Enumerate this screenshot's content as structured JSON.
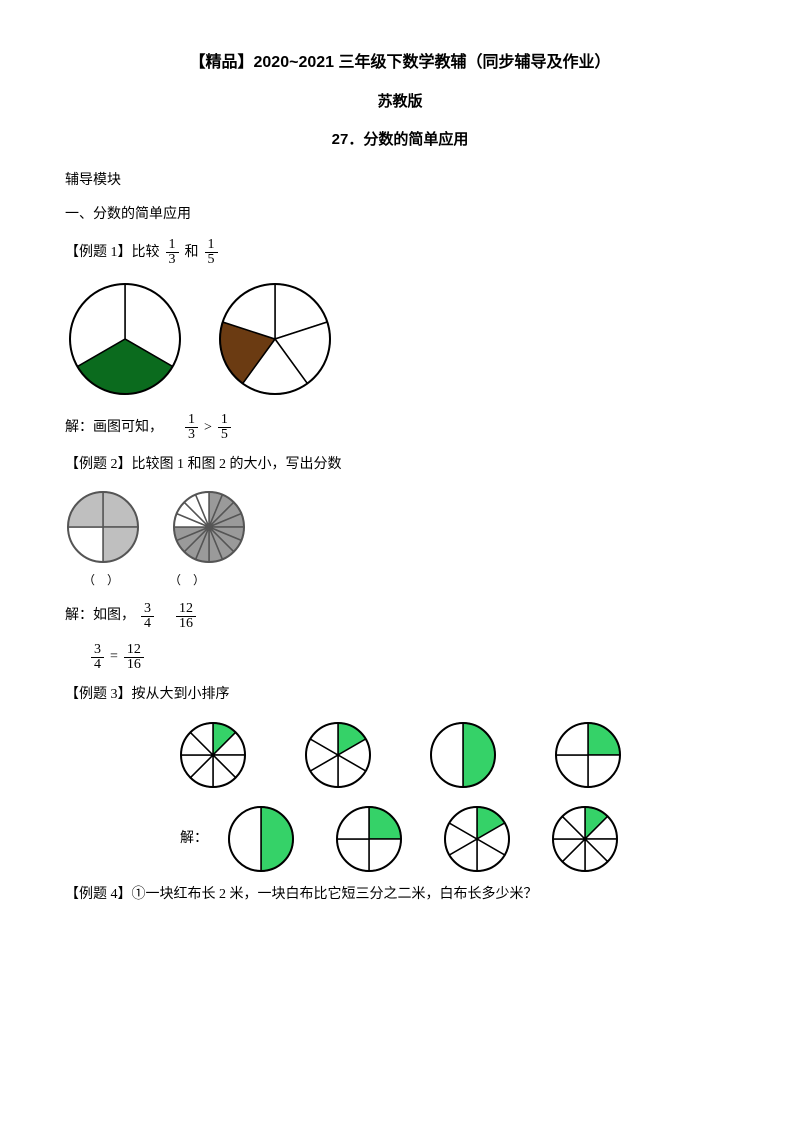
{
  "titles": {
    "main": "【精品】2020~2021 三年级下数学教辅（同步辅导及作业）",
    "publisher": "苏教版",
    "section": "27．分数的简单应用"
  },
  "labels": {
    "module": "辅导模块",
    "subsection": "一、分数的简单应用"
  },
  "ex1": {
    "prefix": "【例题 1】比较",
    "mid": "和",
    "f1n": "1",
    "f1d": "3",
    "f2n": "1",
    "f2d": "5",
    "answer_prefix": "解：画图可知，",
    "op": ">",
    "pie1": {
      "slices": 3,
      "filled": [
        1
      ],
      "fill": "#0b6b1e",
      "stroke": "#000",
      "r": 55
    },
    "pie2": {
      "slices": 5,
      "filled": [
        3
      ],
      "fill": "#6b3b12",
      "stroke": "#000",
      "r": 55
    }
  },
  "ex2": {
    "title": "【例题 2】比较图 1 和图 2 的大小，写出分数",
    "paren": "（　）",
    "answer_prefix": "解：如图，",
    "f1n": "3",
    "f1d": "4",
    "f2n": "12",
    "f2d": "16",
    "eq_l_n": "3",
    "eq_l_d": "4",
    "eq_op": "=",
    "eq_r_n": "12",
    "eq_r_d": "16",
    "pie1": {
      "slices": 4,
      "filled": [
        0,
        1,
        3
      ],
      "fill": "#bfbfbf",
      "stroke": "#555",
      "r": 35
    },
    "pie2": {
      "slices": 16,
      "filled": [
        0,
        1,
        2,
        3,
        4,
        5,
        6,
        7,
        8,
        9,
        10,
        11
      ],
      "fill": "#9a9a9a",
      "stroke": "#555",
      "r": 35
    }
  },
  "ex3": {
    "title": "【例题 3】按从大到小排序",
    "ans": "解：",
    "green": "#35d268",
    "row1": [
      {
        "slices": 8,
        "filled": [
          0
        ],
        "r": 32
      },
      {
        "slices": 6,
        "filled": [
          0
        ],
        "r": 32
      },
      {
        "slices": 2,
        "filled": [
          0
        ],
        "r": 32
      },
      {
        "slices": 4,
        "filled": [
          0
        ],
        "r": 32
      }
    ],
    "row2": [
      {
        "slices": 2,
        "filled": [
          0
        ],
        "r": 32
      },
      {
        "slices": 4,
        "filled": [
          0
        ],
        "r": 32
      },
      {
        "slices": 6,
        "filled": [
          0
        ],
        "r": 32
      },
      {
        "slices": 8,
        "filled": [
          0
        ],
        "r": 32
      }
    ]
  },
  "ex4": {
    "text": "【例题 4】①一块红布长 2 米，一块白布比它短三分之二米，白布长多少米？"
  }
}
